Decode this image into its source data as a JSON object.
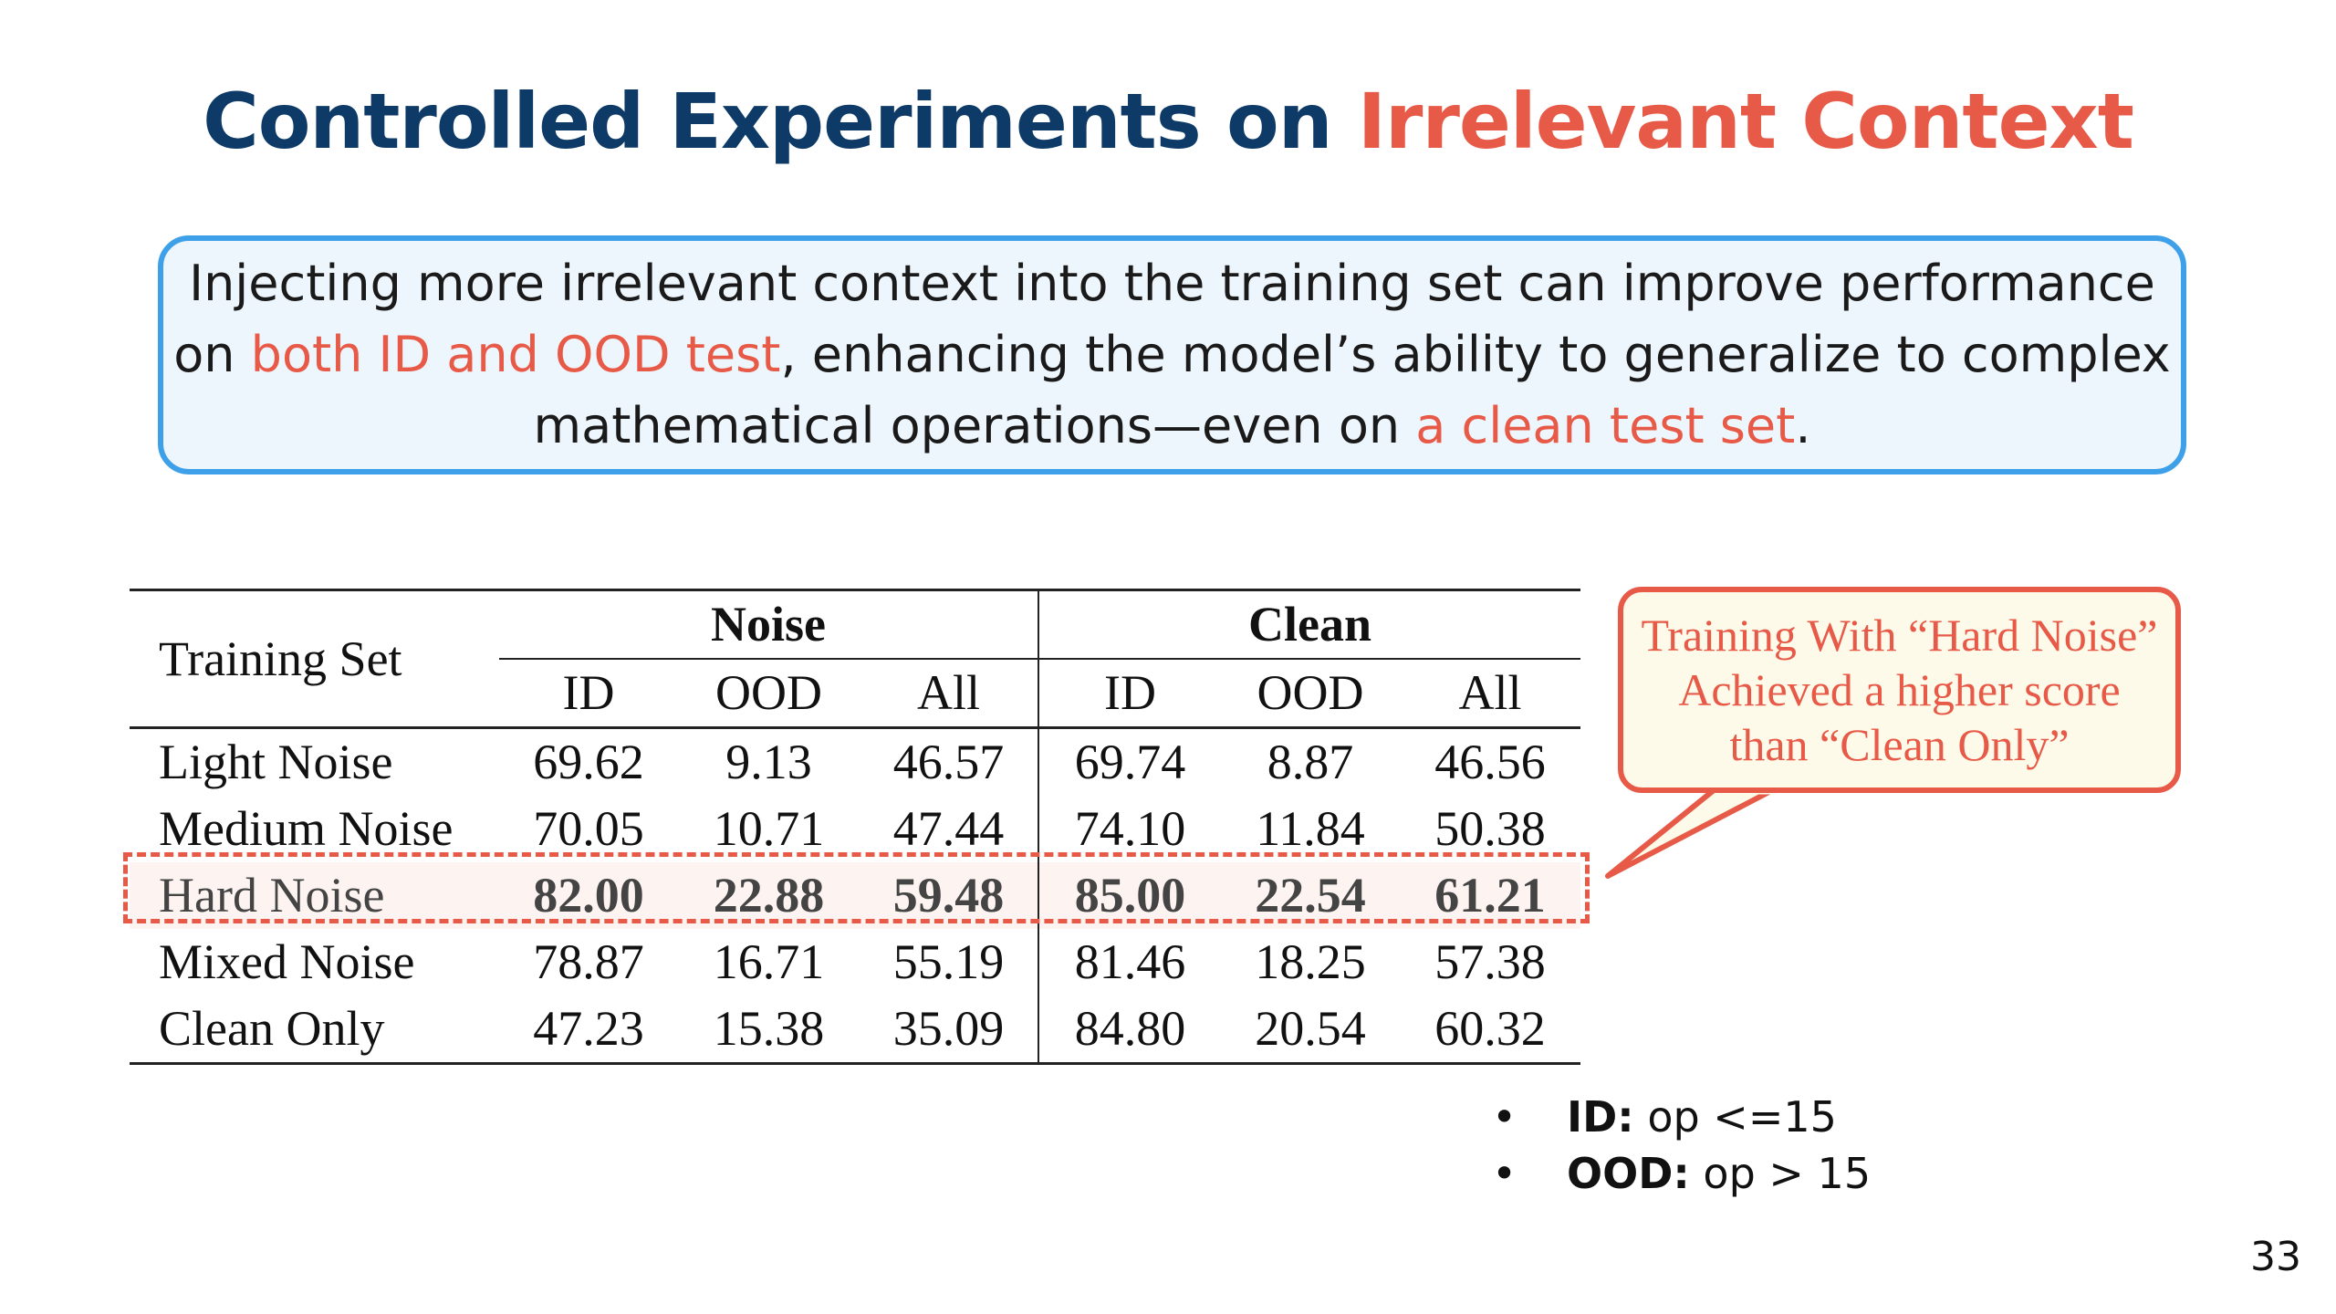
{
  "slide": {
    "title_main": "Controlled Experiments on ",
    "title_highlight": "Irrelevant Context",
    "page_number": "33"
  },
  "callout": {
    "part1": "Injecting more irrelevant context into the training set can improve performance on ",
    "highlight1": "both ID and OOD test",
    "part2": ", enhancing the model’s ability to generalize to complex mathematical operations—even on ",
    "highlight2": "a clean test set",
    "part3": "."
  },
  "table": {
    "row_header": "Training Set",
    "group_noise": "Noise",
    "group_clean": "Clean",
    "sub_headers": [
      "ID",
      "OOD",
      "All",
      "ID",
      "OOD",
      "All"
    ],
    "rows": [
      {
        "name": "Light Noise",
        "values": [
          "69.62",
          "9.13",
          "46.57",
          "69.74",
          "8.87",
          "46.56"
        ]
      },
      {
        "name": "Medium Noise",
        "values": [
          "70.05",
          "10.71",
          "47.44",
          "74.10",
          "11.84",
          "50.38"
        ]
      },
      {
        "name": "Hard Noise",
        "values": [
          "82.00",
          "22.88",
          "59.48",
          "85.00",
          "22.54",
          "61.21"
        ]
      },
      {
        "name": "Mixed Noise",
        "values": [
          "78.87",
          "16.71",
          "55.19",
          "81.46",
          "18.25",
          "57.38"
        ]
      },
      {
        "name": "Clean Only",
        "values": [
          "47.23",
          "15.38",
          "35.09",
          "84.80",
          "20.54",
          "60.32"
        ]
      }
    ]
  },
  "bubble": {
    "text": "Training With “Hard Noise” Achieved a higher score than “Clean Only”"
  },
  "notes": [
    {
      "term": "ID:",
      "desc": " op <=15"
    },
    {
      "term": "OOD:",
      "desc": " op > 15"
    }
  ],
  "colors": {
    "title": "#0e3a68",
    "accent": "#e85a48",
    "callout_border": "#3ea0e8",
    "callout_fill": "#eef6fd",
    "bubble_fill": "#fdfaea"
  }
}
